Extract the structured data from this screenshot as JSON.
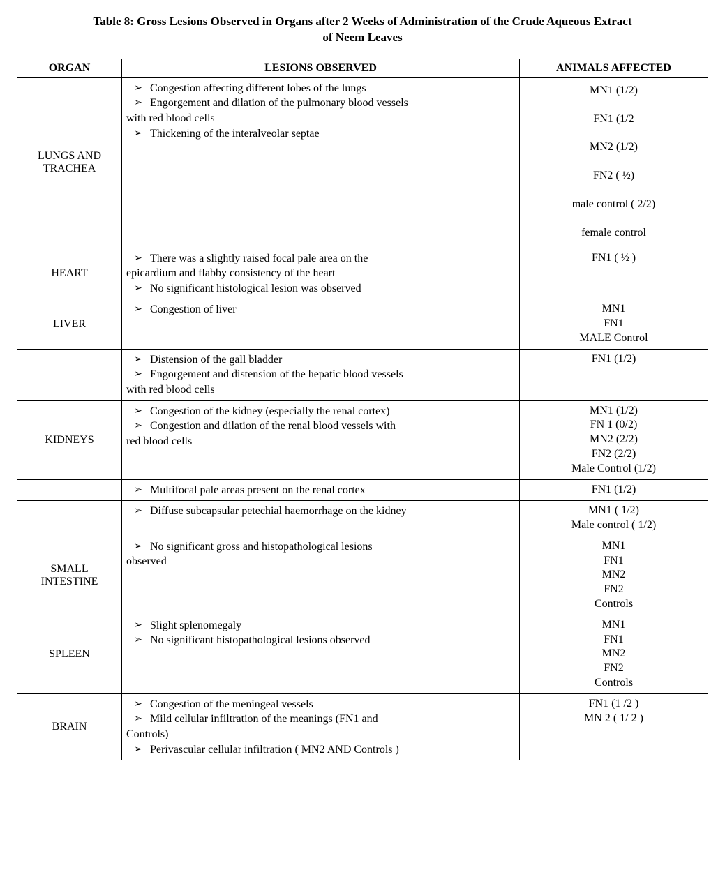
{
  "title_line1": "Table 8: Gross Lesions Observed in Organs after 2 Weeks of Administration of the Crude Aqueous Extract",
  "title_line2": "of Neem Leaves",
  "headers": {
    "organ": "ORGAN",
    "lesions": "LESIONS OBSERVED",
    "animals": "ANIMALS AFFECTED"
  },
  "rows": [
    {
      "organ": "LUNGS AND TRACHEA",
      "lesions": [
        {
          "bullet": true,
          "text": "Congestion affecting different lobes of the lungs"
        },
        {
          "bullet": true,
          "text": "Engorgement and dilation of the pulmonary blood vessels"
        },
        {
          "bullet": false,
          "text": "with red blood cells"
        },
        {
          "bullet": true,
          "text": "Thickening of the interalveolar septae"
        }
      ],
      "animals": [
        "MN1 (1/2)",
        "FN1 (1/2",
        "MN2 (1/2)",
        "FN2 ( ½)",
        "male control ( 2/2)",
        "female control"
      ],
      "animals_spaced": true
    },
    {
      "organ": "HEART",
      "lesions": [
        {
          "bullet": true,
          "text": "There was a slightly raised focal pale area on the"
        },
        {
          "bullet": false,
          "text": "epicardium and flabby consistency of the heart"
        },
        {
          "bullet": true,
          "text": "No significant histological lesion was observed"
        }
      ],
      "animals": [
        "FN1 ( ½ )"
      ],
      "animals_spaced": false
    },
    {
      "organ": "LIVER",
      "lesions": [
        {
          "bullet": true,
          "text": "Congestion of liver"
        }
      ],
      "animals": [
        "MN1",
        "FN1",
        "MALE Control"
      ],
      "animals_spaced": false
    },
    {
      "organ": "",
      "lesions": [
        {
          "bullet": true,
          "text": "Distension of the gall bladder"
        },
        {
          "bullet": true,
          "text": "Engorgement and distension of the hepatic blood vessels"
        },
        {
          "bullet": false,
          "text": "with red blood cells"
        }
      ],
      "animals": [
        "FN1 (1/2)"
      ],
      "animals_spaced": false
    },
    {
      "organ": "KIDNEYS",
      "lesions": [
        {
          "bullet": true,
          "text": "Congestion of the kidney (especially the renal cortex)"
        },
        {
          "bullet": true,
          "text": "Congestion and dilation of the renal blood vessels with"
        },
        {
          "bullet": false,
          "text": "red blood cells"
        }
      ],
      "animals": [
        "MN1 (1/2)",
        "FN 1 (0/2)",
        "MN2 (2/2)",
        "FN2 (2/2)",
        "Male Control (1/2)"
      ],
      "animals_spaced": false
    },
    {
      "organ": "",
      "lesions": [
        {
          "bullet": true,
          "text": "Multifocal pale areas present on the renal cortex"
        }
      ],
      "animals": [
        "FN1 (1/2)"
      ],
      "animals_spaced": false
    },
    {
      "organ": "",
      "lesions": [
        {
          "bullet": true,
          "text": "Diffuse subcapsular petechial  haemorrhage on the kidney"
        }
      ],
      "animals": [
        "MN1 ( 1/2)",
        "Male control ( 1/2)"
      ],
      "animals_spaced": false
    },
    {
      "organ": "SMALL INTESTINE",
      "lesions": [
        {
          "bullet": true,
          "text": "No significant gross and histopathological lesions"
        },
        {
          "bullet": false,
          "text": "observed"
        }
      ],
      "animals": [
        "MN1",
        "FN1",
        "MN2",
        "FN2",
        "Controls"
      ],
      "animals_spaced": false
    },
    {
      "organ": "SPLEEN",
      "lesions": [
        {
          "bullet": true,
          "text": "Slight  splenomegaly"
        },
        {
          "bullet": true,
          "text": "No significant histopathological lesions observed"
        }
      ],
      "animals": [
        "MN1",
        "FN1",
        "MN2",
        "FN2",
        "Controls"
      ],
      "animals_spaced": false
    },
    {
      "organ": "BRAIN",
      "lesions": [
        {
          "bullet": true,
          "text": "Congestion of the meningeal vessels"
        },
        {
          "bullet": true,
          "text": "Mild cellular infiltration of the meanings (FN1 and"
        },
        {
          "bullet": false,
          "text": "Controls)"
        },
        {
          "bullet": true,
          "text": "Perivascular cellular infiltration ( MN2 AND Controls )"
        }
      ],
      "animals": [
        "FN1 (1 /2 )",
        "MN 2 ( 1/ 2 )"
      ],
      "animals_spaced": false
    }
  ],
  "bullet_glyph": "➢"
}
